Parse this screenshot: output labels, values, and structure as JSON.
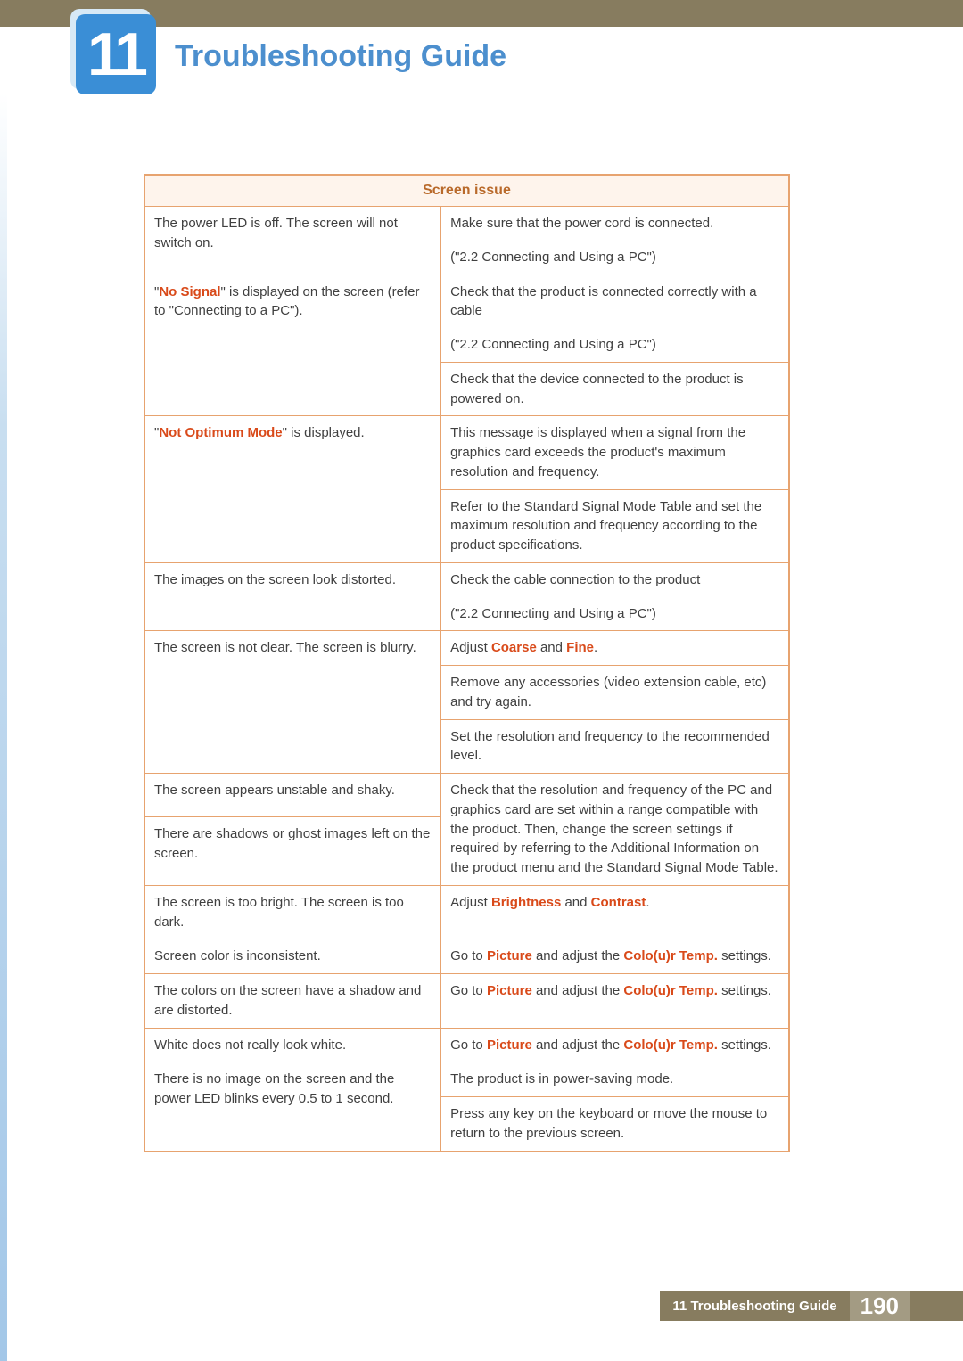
{
  "colors": {
    "accent_blue": "#4c8fce",
    "chapter_bg": "#3a8ed6",
    "chapter_shadow": "#d7e9f6",
    "table_border": "#e7a36f",
    "table_header_bg": "#fef4ec",
    "table_header_text": "#b96a2b",
    "body_text": "#404040",
    "highlight": "#d94a1a",
    "top_bar": "#877c5f",
    "footer_page_bg": "#a39b83",
    "left_stripe": "#a3c7e8"
  },
  "chapter_number": "11",
  "page_title": "Troubleshooting Guide",
  "table": {
    "header": "Screen issue",
    "rows": [
      {
        "issue_pre": "The power LED is off. The screen will not switch on.",
        "solutions": [
          "Make sure that the power cord is connected.",
          "(\"2.2 Connecting and Using a PC\")"
        ]
      },
      {
        "issue_html": "\"<span class='hl'>No Signal</span>\" is displayed on the screen (refer to \"Connecting to a PC\").",
        "solutions": [
          "Check that the product is connected correctly with a cable",
          "(\"2.2 Connecting and Using a PC\")",
          "Check that the device connected to the product is powered on."
        ]
      },
      {
        "issue_html": "\"<span class='hl'>Not Optimum Mode</span>\" is displayed.",
        "solutions": [
          "This message is displayed when a signal from the graphics card exceeds the product's maximum resolution and frequency.",
          "Refer to the Standard Signal Mode Table and set the maximum resolution and frequency according to the product specifications."
        ]
      },
      {
        "issue_pre": "The images on the screen look distorted.",
        "solutions": [
          "Check the cable connection to the product",
          "(\"2.2 Connecting and Using a PC\")"
        ]
      },
      {
        "issue_pre": "The screen is not clear. The screen is blurry.",
        "solutions_html": [
          "Adjust <span class='hl'>Coarse</span> and <span class='hl'>Fine</span>.",
          "Remove any accessories (video extension cable, etc) and try again.",
          "Set the resolution and frequency to the recommended level."
        ]
      },
      {
        "issue_pre_a": "The screen appears unstable and shaky.",
        "issue_pre_b": "There are shadows or ghost images left on the screen.",
        "solution_merged": "Check that the resolution and frequency of the PC and graphics card are set within a range compatible with the product. Then, change the screen settings if required by referring to the Additional Information on the product menu and the Standard Signal Mode Table."
      },
      {
        "issue_pre": "The screen is too bright. The screen is too dark.",
        "solution_html": "Adjust <span class='hl'>Brightness</span> and <span class='hl'>Contrast</span>."
      },
      {
        "issue_pre": "Screen color is inconsistent.",
        "solution_html": "Go to <span class='hl'>Picture</span> and adjust the <span class='hl'>Colo(u)r Temp.</span> settings."
      },
      {
        "issue_pre": "The colors on the screen have a shadow and are distorted.",
        "solution_html": "Go to <span class='hl'>Picture</span> and adjust the <span class='hl'>Colo(u)r Temp.</span> settings."
      },
      {
        "issue_pre": "White does not really look white.",
        "solution_html": "Go to <span class='hl'>Picture</span> and adjust the <span class='hl'>Colo(u)r Temp.</span> settings."
      },
      {
        "issue_pre": "There is no image on the screen and the power LED blinks every 0.5 to 1 second.",
        "solutions": [
          "The product is in power-saving mode.",
          "Press any key on the keyboard or move the mouse to return to the previous screen."
        ]
      }
    ]
  },
  "footer": {
    "label": "11 Troubleshooting Guide",
    "page": "190"
  }
}
